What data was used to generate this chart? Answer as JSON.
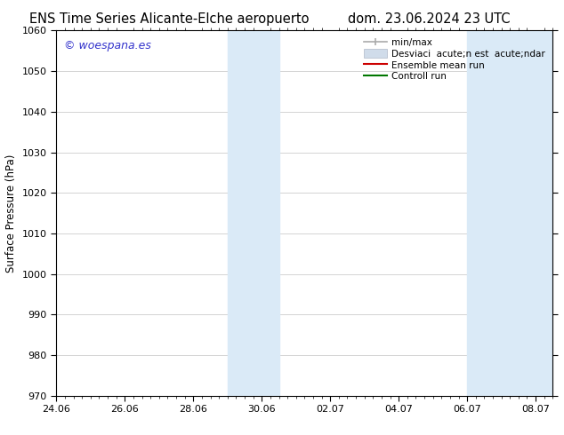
{
  "title_left": "ENS Time Series Alicante-Elche aeropuerto",
  "title_right": "dom. 23.06.2024 23 UTC",
  "ylabel": "Surface Pressure (hPa)",
  "ylim": [
    970,
    1060
  ],
  "yticks": [
    970,
    980,
    990,
    1000,
    1010,
    1020,
    1030,
    1040,
    1050,
    1060
  ],
  "xlim": [
    0,
    14.5
  ],
  "xtick_labels": [
    "24.06",
    "26.06",
    "28.06",
    "30.06",
    "02.07",
    "04.07",
    "06.07",
    "08.07"
  ],
  "xtick_positions": [
    0,
    2,
    4,
    6,
    8,
    10,
    12,
    14
  ],
  "shaded_regions": [
    {
      "start": 5.0,
      "end": 6.5,
      "color": "#daeaf7"
    },
    {
      "start": 12.0,
      "end": 14.5,
      "color": "#daeaf7"
    }
  ],
  "watermark_text": "© woespana.es",
  "watermark_color": "#3333cc",
  "legend_label_minmax": "min/max",
  "legend_label_std": "Desviaci  acute;n est  acute;ndar",
  "legend_label_ens": "Ensemble mean run",
  "legend_label_ctrl": "Controll run",
  "legend_color_minmax": "#aaaaaa",
  "legend_color_std": "#cccccc",
  "legend_color_ens": "#cc0000",
  "legend_color_ctrl": "#007700",
  "bg_color": "#ffffff",
  "plot_bg_color": "#ffffff",
  "grid_color": "#cccccc",
  "title_fontsize": 10.5,
  "ylabel_fontsize": 8.5,
  "tick_fontsize": 8,
  "legend_fontsize": 7.5,
  "watermark_fontsize": 9
}
